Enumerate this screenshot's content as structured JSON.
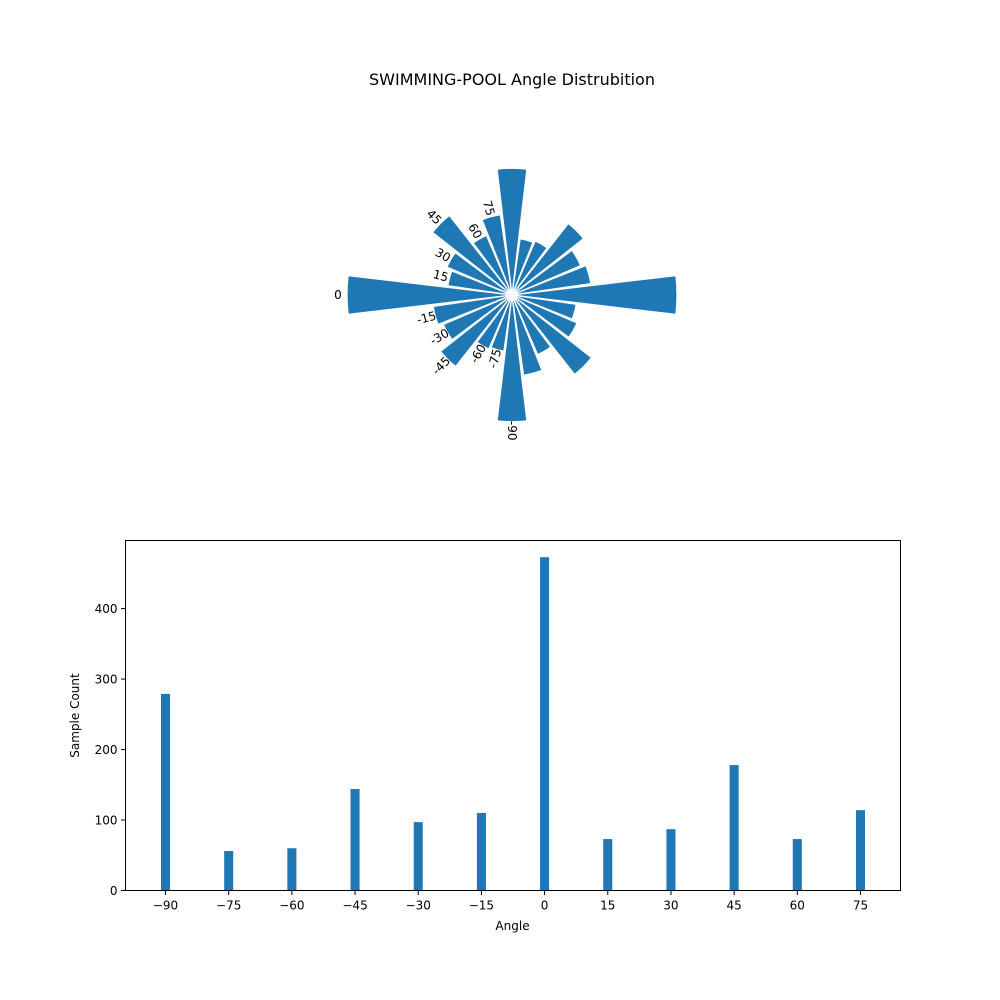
{
  "chart_data": [
    {
      "type": "polar-bar",
      "title": "SWIMMING-POOL Angle Distrubition",
      "color": "#1f77b4",
      "categories": [
        "-90",
        "-75",
        "-60",
        "-45",
        "-30",
        "-15",
        "0",
        "15",
        "30",
        "45",
        "60",
        "75"
      ],
      "values": [
        279,
        56,
        60,
        144,
        97,
        110,
        473,
        73,
        87,
        178,
        73,
        114
      ],
      "mirrored": true,
      "grid": false
    },
    {
      "type": "bar",
      "color": "#1f77b4",
      "categories": [
        -90,
        -75,
        -60,
        -45,
        -30,
        -15,
        0,
        15,
        30,
        45,
        60,
        75
      ],
      "values": [
        279,
        56,
        60,
        144,
        97,
        110,
        473,
        73,
        87,
        178,
        73,
        114
      ],
      "xlabel": "Angle",
      "ylabel": "Sample Count",
      "xticks": [
        "−90",
        "−75",
        "−60",
        "−45",
        "−30",
        "−15",
        "0",
        "15",
        "30",
        "45",
        "60",
        "75"
      ],
      "yticks": [
        0,
        100,
        200,
        300,
        400
      ],
      "ylim": [
        0,
        496.65
      ],
      "xlim": [
        -99.5,
        84.5
      ],
      "grid": false
    }
  ]
}
